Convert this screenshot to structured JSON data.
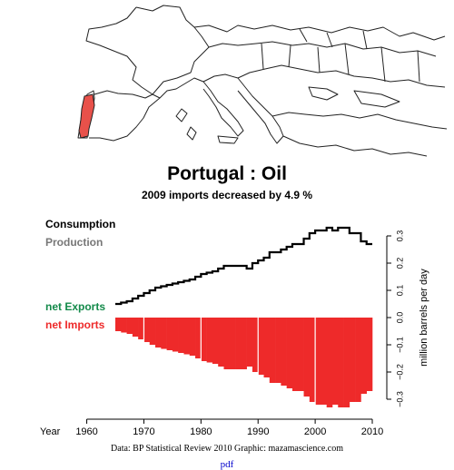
{
  "header": {
    "title": "Portugal :  Oil",
    "subtitle": "2009 imports decreased by 4.9 %"
  },
  "map": {
    "highlighted_country": "Portugal",
    "highlight_color": "#e8514a",
    "land_color": "#ffffff",
    "border_color": "#222222"
  },
  "footer": {
    "source": "Data: BP Statistical Review 2010     Graphic: mazamascience.com",
    "link": "pdf"
  },
  "colors": {
    "consumption": "#000000",
    "production": "#777777",
    "net_exports": "#138a4a",
    "net_imports": "#ee2a2a"
  },
  "chart_data": {
    "type": "area",
    "x_label": "Year",
    "y_label": "million barrels per day",
    "legend": [
      "Consumption",
      "Production",
      "net Exports",
      "net Imports"
    ],
    "x_ticks": [
      1960,
      1970,
      1980,
      1990,
      2000,
      2010
    ],
    "y_ticks": [
      -0.3,
      -0.2,
      -0.1,
      0.0,
      0.1,
      0.2,
      0.3
    ],
    "y_tick_labels": [
      "−0.3",
      "−0.2",
      "−0.1",
      "0.0",
      "0.1",
      "0.2",
      "0.3"
    ],
    "xlim": [
      1965,
      2010
    ],
    "ylim": [
      -0.33,
      0.33
    ],
    "years": [
      1965,
      1966,
      1967,
      1968,
      1969,
      1970,
      1971,
      1972,
      1973,
      1974,
      1975,
      1976,
      1977,
      1978,
      1979,
      1980,
      1981,
      1982,
      1983,
      1984,
      1985,
      1986,
      1987,
      1988,
      1989,
      1990,
      1991,
      1992,
      1993,
      1994,
      1995,
      1996,
      1997,
      1998,
      1999,
      2000,
      2001,
      2002,
      2003,
      2004,
      2005,
      2006,
      2007,
      2008,
      2009
    ],
    "series": [
      {
        "name": "Consumption",
        "values": [
          0.05,
          0.055,
          0.06,
          0.07,
          0.08,
          0.09,
          0.1,
          0.11,
          0.115,
          0.12,
          0.125,
          0.13,
          0.135,
          0.14,
          0.15,
          0.16,
          0.165,
          0.17,
          0.18,
          0.19,
          0.19,
          0.19,
          0.19,
          0.18,
          0.2,
          0.21,
          0.22,
          0.24,
          0.24,
          0.25,
          0.26,
          0.27,
          0.27,
          0.29,
          0.31,
          0.32,
          0.32,
          0.33,
          0.32,
          0.33,
          0.33,
          0.31,
          0.31,
          0.28,
          0.27
        ]
      },
      {
        "name": "Production",
        "values": [
          0,
          0,
          0,
          0,
          0,
          0,
          0,
          0,
          0,
          0,
          0,
          0,
          0,
          0,
          0,
          0,
          0,
          0,
          0,
          0,
          0,
          0,
          0,
          0,
          0,
          0,
          0,
          0,
          0,
          0,
          0,
          0,
          0,
          0,
          0,
          0,
          0,
          0,
          0,
          0,
          0,
          0,
          0,
          0,
          0
        ]
      },
      {
        "name": "net Exports",
        "values": [
          0,
          0,
          0,
          0,
          0,
          0,
          0,
          0,
          0,
          0,
          0,
          0,
          0,
          0,
          0,
          0,
          0,
          0,
          0,
          0,
          0,
          0,
          0,
          0,
          0,
          0,
          0,
          0,
          0,
          0,
          0,
          0,
          0,
          0,
          0,
          0,
          0,
          0,
          0,
          0,
          0,
          0,
          0,
          0,
          0
        ]
      },
      {
        "name": "net Imports",
        "values": [
          0.05,
          0.055,
          0.06,
          0.07,
          0.08,
          0.09,
          0.1,
          0.11,
          0.115,
          0.12,
          0.125,
          0.13,
          0.135,
          0.14,
          0.15,
          0.16,
          0.165,
          0.17,
          0.18,
          0.19,
          0.19,
          0.19,
          0.19,
          0.18,
          0.2,
          0.21,
          0.22,
          0.24,
          0.24,
          0.25,
          0.26,
          0.27,
          0.27,
          0.29,
          0.31,
          0.32,
          0.32,
          0.33,
          0.32,
          0.33,
          0.33,
          0.31,
          0.31,
          0.28,
          0.27
        ]
      }
    ]
  }
}
